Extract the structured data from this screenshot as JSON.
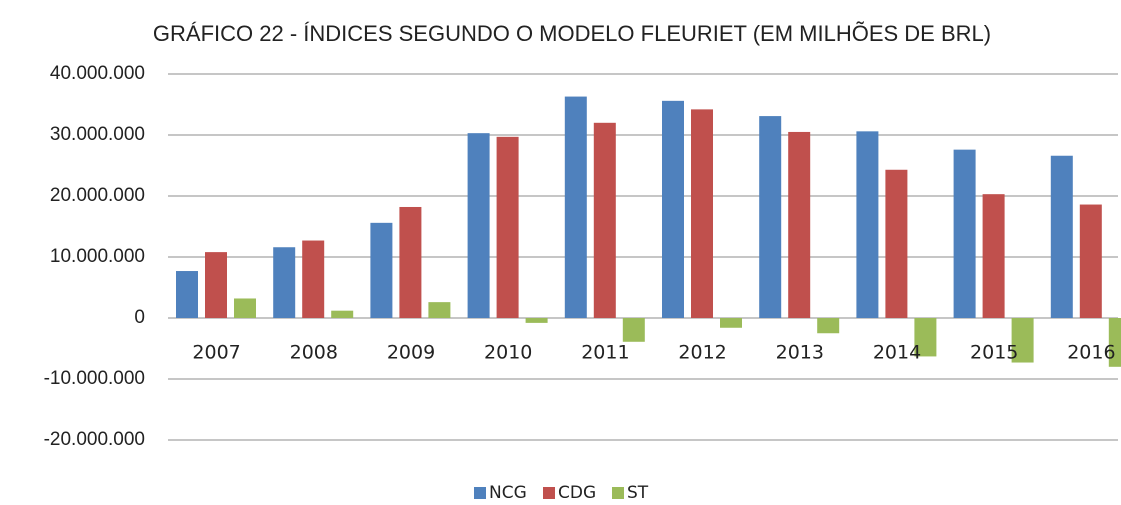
{
  "chart_data": {
    "type": "bar",
    "title": "GRÁFICO 22 - ÍNDICES SEGUNDO O MODELO FLEURIET (EM MILHÕES DE BRL)",
    "categories": [
      "2007",
      "2008",
      "2009",
      "2010",
      "2011",
      "2012",
      "2013",
      "2014",
      "2015",
      "2016"
    ],
    "series": [
      {
        "name": "NCG",
        "color": "#4f81bd",
        "values": [
          7700000,
          11600000,
          15600000,
          30300000,
          36300000,
          35600000,
          33100000,
          30600000,
          27600000,
          26600000
        ]
      },
      {
        "name": "CDG",
        "color": "#c0504d",
        "values": [
          10800000,
          12700000,
          18200000,
          29700000,
          32000000,
          34200000,
          30500000,
          24300000,
          20300000,
          18600000
        ]
      },
      {
        "name": "ST",
        "color": "#9bbb59",
        "values": [
          3200000,
          1200000,
          2600000,
          -800000,
          -3900000,
          -1600000,
          -2500000,
          -6300000,
          -7300000,
          -8000000
        ]
      }
    ],
    "ylim": [
      -20000000,
      40000000
    ],
    "yticks": [
      {
        "value": -20000000,
        "label": "-20.000.000"
      },
      {
        "value": -10000000,
        "label": "-10.000.000"
      },
      0,
      {
        "value": 10000000,
        "label": "10.000.000"
      },
      {
        "value": 20000000,
        "label": "20.000.000"
      },
      {
        "value": 30000000,
        "label": "30.000.000"
      },
      {
        "value": 40000000,
        "label": "40.000.000"
      }
    ],
    "grid": true,
    "legend": "bottom"
  }
}
